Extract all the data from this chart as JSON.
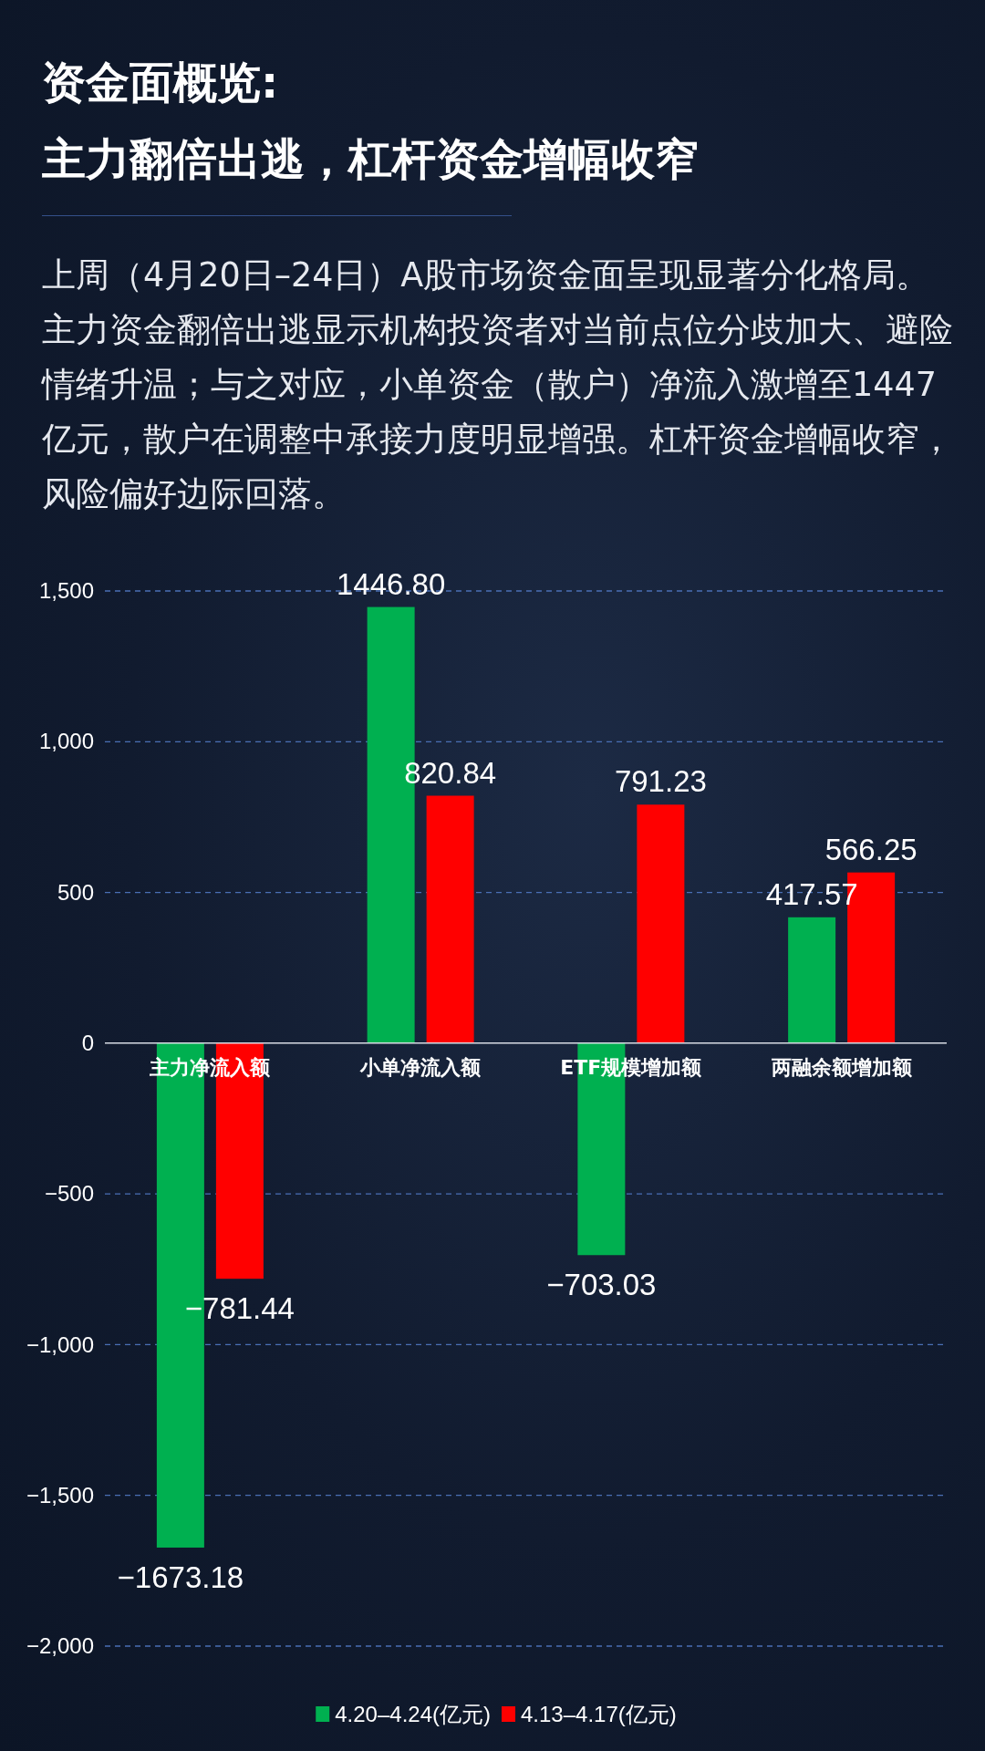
{
  "chart_data": {
    "type": "bar",
    "title": "资金面概览:",
    "subtitle": "主力翻倍出逃，杠杆资金增幅收窄",
    "annotations": [
      "上周（4月20日–24日）A股市场资金面呈现显著分化格局。主力资金翻倍出逃显示机构投资者对当前点位分歧加大、避险情绪升温；与之对应，小单资金（散户）净流入激增至1447亿元，散户在调整中承接力度明显增强。杠杆资金增幅收窄，风险偏好边际回落。"
    ],
    "categories": [
      "主力净流入额",
      "小单净流入额",
      "ETF规模增加额",
      "两融余额增加额"
    ],
    "series": [
      {
        "name": "4.20–4.24(亿元)",
        "color": "#00b050",
        "values": [
          -1673.18,
          1446.8,
          -703.03,
          417.57
        ],
        "value_labels": [
          "−1673.18",
          "1446.80",
          "−703.03",
          "417.57"
        ]
      },
      {
        "name": "4.13–4.17(亿元)",
        "color": "#ff0000",
        "values": [
          -781.44,
          820.84,
          791.23,
          566.25
        ],
        "value_labels": [
          "−781.44",
          "820.84",
          "791.23",
          "566.25"
        ]
      }
    ],
    "ylim": [
      -2000,
      1500
    ],
    "yticks": [
      {
        "value": -2000,
        "label": "−2,000"
      },
      {
        "value": -1500,
        "label": "−1,500"
      },
      {
        "value": -1000,
        "label": "−1,000"
      },
      {
        "value": -500,
        "label": "−500"
      },
      0,
      {
        "value": 500,
        "label": "500"
      },
      {
        "value": 1000,
        "label": "1,000"
      },
      {
        "value": 1500,
        "label": "1,500"
      }
    ],
    "grid": "y",
    "legend": "bottom"
  }
}
